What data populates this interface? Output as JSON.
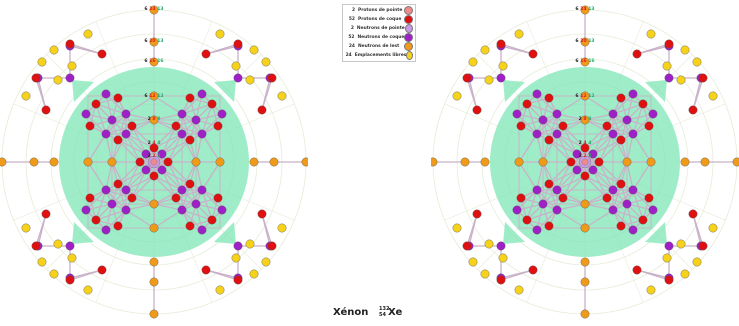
{
  "colors": {
    "proton_point": "#f08a8a",
    "proton_shell": "#e01010",
    "neutron_point": "#c99ae8",
    "neutron_shell": "#a020c8",
    "neutron_link": "#f09a1a",
    "free_slot": "#f6d21a",
    "green_zone": "#7fe6b5",
    "ring": "#e6ecd8",
    "bond": "#c9b2c9",
    "red_text": "#e02020",
    "green_text": "#1fb06a",
    "dark_text": "#222222"
  },
  "legend": [
    {
      "count": "2",
      "label": "Protons de pointe",
      "swatch": "#f08a8a"
    },
    {
      "count": "52",
      "label": "Protons de coque",
      "swatch": "#e01010"
    },
    {
      "count": "2",
      "label": "Neutrons de pointe",
      "swatch": "#c99ae8"
    },
    {
      "count": "52",
      "label": "Neutrons de coque",
      "swatch": "#a020c8"
    },
    {
      "count": "24",
      "label": "Neutrons de lest",
      "swatch": "#f09a1a"
    },
    {
      "count": "24",
      "label": "Emplacements libres",
      "swatch": "#f6d21a"
    }
  ],
  "shell_labels": [
    {
      "shell": 1,
      "parts": [
        "2",
        "2",
        "2"
      ]
    },
    {
      "shell": 2,
      "parts": [
        "2",
        "4",
        "4"
      ]
    },
    {
      "shell": 3,
      "parts": [
        "2",
        "8",
        "8"
      ]
    },
    {
      "shell": 4,
      "parts": [
        "6",
        "12",
        "12"
      ]
    },
    {
      "shell": 5,
      "parts": [
        "6",
        "16",
        "16"
      ]
    },
    {
      "shell": 6,
      "parts": [
        "6",
        "20",
        "13"
      ]
    },
    {
      "shell": 7,
      "parts": [
        "6",
        "24",
        "13"
      ]
    }
  ],
  "caption": {
    "element": "Xénon",
    "mass_number": "132",
    "atomic_number": "54",
    "symbol": "Xe"
  }
}
